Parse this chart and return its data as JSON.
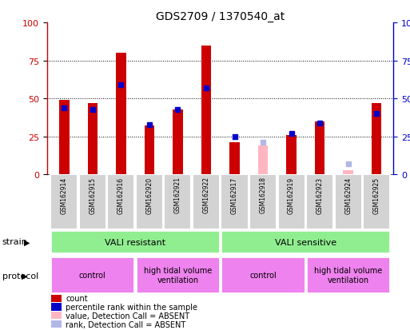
{
  "title": "GDS2709 / 1370540_at",
  "samples": [
    "GSM162914",
    "GSM162915",
    "GSM162916",
    "GSM162920",
    "GSM162921",
    "GSM162922",
    "GSM162917",
    "GSM162918",
    "GSM162919",
    "GSM162923",
    "GSM162924",
    "GSM162925"
  ],
  "count_values": [
    49,
    47,
    80,
    32,
    43,
    85,
    21,
    null,
    26,
    35,
    null,
    47
  ],
  "rank_values": [
    44,
    43,
    59,
    33,
    43,
    57,
    25,
    null,
    27,
    34,
    null,
    40
  ],
  "absent_count": [
    null,
    null,
    null,
    null,
    null,
    null,
    null,
    19,
    null,
    null,
    3,
    null
  ],
  "absent_rank": [
    null,
    null,
    null,
    null,
    null,
    null,
    null,
    21,
    null,
    null,
    7,
    null
  ],
  "ylim": [
    0,
    100
  ],
  "yticks": [
    0,
    25,
    50,
    75,
    100
  ],
  "count_color": "#cc0000",
  "rank_color": "#0000cc",
  "absent_count_color": "#ffb6c1",
  "absent_rank_color": "#b0b8e8",
  "grid_color": "black",
  "bg_color": "#ffffff",
  "sample_bg_color": "#d3d3d3",
  "strain_resistant_color": "#90ee90",
  "strain_sensitive_color": "#90ee90",
  "protocol_color": "#ee82ee",
  "strain_label": "strain",
  "protocol_label": "protocol",
  "legend_items": [
    {
      "label": "count",
      "color": "#cc0000"
    },
    {
      "label": "percentile rank within the sample",
      "color": "#0000cc"
    },
    {
      "label": "value, Detection Call = ABSENT",
      "color": "#ffb6c1"
    },
    {
      "label": "rank, Detection Call = ABSENT",
      "color": "#b0b8e8"
    }
  ]
}
